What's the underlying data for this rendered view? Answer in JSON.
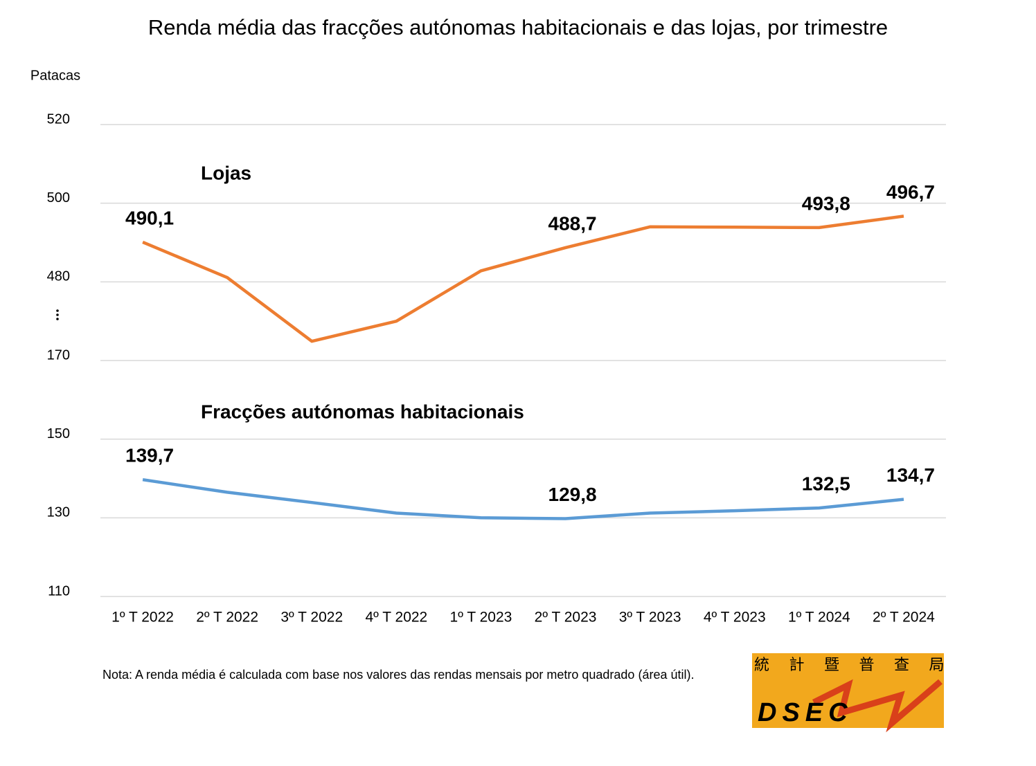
{
  "chart_data": {
    "type": "line",
    "title": "Renda média das fracções autónomas habitacionais e das lojas, por trimestre",
    "y_label": "Patacas",
    "categories": [
      "1º T 2022",
      "2º T 2022",
      "3º T 2022",
      "4º T 2022",
      "1º T 2023",
      "2º T 2023",
      "3º T 2023",
      "4º T 2023",
      "1º T 2024",
      "2º T 2024"
    ],
    "series": [
      {
        "name": "Lojas",
        "color": "#ED7D31",
        "label_color": "#ED7D31",
        "values": [
          490.1,
          481.1,
          464.9,
          470.0,
          482.8,
          488.7,
          494.0,
          493.9,
          493.8,
          496.7
        ],
        "value_labels": [
          "490,1",
          null,
          null,
          null,
          null,
          "488,7",
          null,
          null,
          "493,8",
          "496,7"
        ]
      },
      {
        "name": "Fracções autónomas habitacionais",
        "color": "#5B9BD5",
        "label_color": "#1F73BA",
        "values": [
          139.7,
          136.5,
          133.9,
          131.2,
          130.0,
          129.8,
          131.2,
          131.8,
          132.5,
          134.7
        ],
        "value_labels": [
          "139,7",
          null,
          null,
          null,
          null,
          "129,8",
          null,
          null,
          "132,5",
          "134,7"
        ]
      }
    ],
    "ylim": [
      110,
      520
    ],
    "axis_break": [
      170,
      460
    ],
    "yticks": [
      110,
      130,
      150,
      170,
      480,
      500,
      520
    ],
    "grid": true,
    "note": "Nota: A renda média é calculada com base nos valores das rendas mensais por metro quadrado (área útil).",
    "logo": {
      "chars": [
        "統",
        "計",
        "暨",
        "普",
        "查",
        "局"
      ],
      "text": "DSEC"
    }
  }
}
